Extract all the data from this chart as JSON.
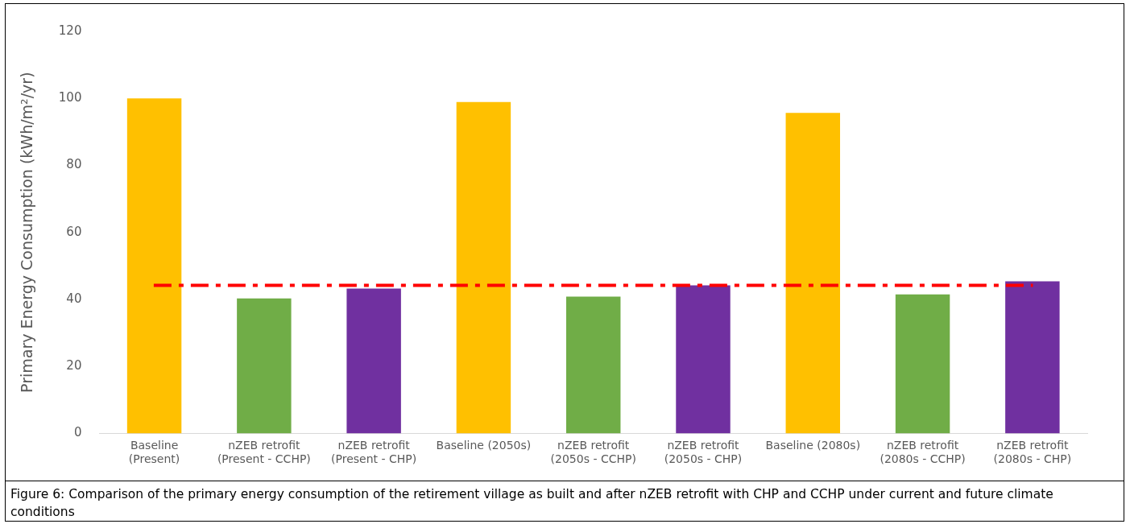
{
  "chart_data": {
    "type": "bar",
    "ylabel": "Primary Energy Consumption (kWh/m²/yr)",
    "categories": [
      "Baseline (Present)",
      "nZEB retrofit (Present - CCHP)",
      "nZEB retrofit (Present - CHP)",
      "Baseline (2050s)",
      "nZEB retrofit (2050s - CCHP)",
      "nZEB retrofit (2050s - CHP)",
      "Baseline (2080s)",
      "nZEB retrofit (2080s - CCHP)",
      "nZEB retrofit (2080s - CHP)"
    ],
    "values": [
      100,
      40.3,
      43.2,
      98.9,
      40.8,
      44.2,
      95.7,
      41.5,
      45.4
    ],
    "colors": [
      "#ffc000",
      "#70ad47",
      "#7030a0",
      "#ffc000",
      "#70ad47",
      "#7030a0",
      "#ffc000",
      "#70ad47",
      "#7030a0"
    ],
    "ylim": [
      0,
      120
    ],
    "yticks": [
      0,
      20,
      40,
      60,
      80,
      100,
      120
    ],
    "grid": false,
    "legend": false,
    "ref_lines": [
      {
        "axis": "y",
        "value": 44.2,
        "color": "#ff0000",
        "line_style": "dashed"
      }
    ],
    "annotations": [
      "Figure 6: Comparison of the primary energy consumption of the retirement village as built and after nZEB retrofit with CHP and CCHP under current and future climate conditions"
    ]
  }
}
